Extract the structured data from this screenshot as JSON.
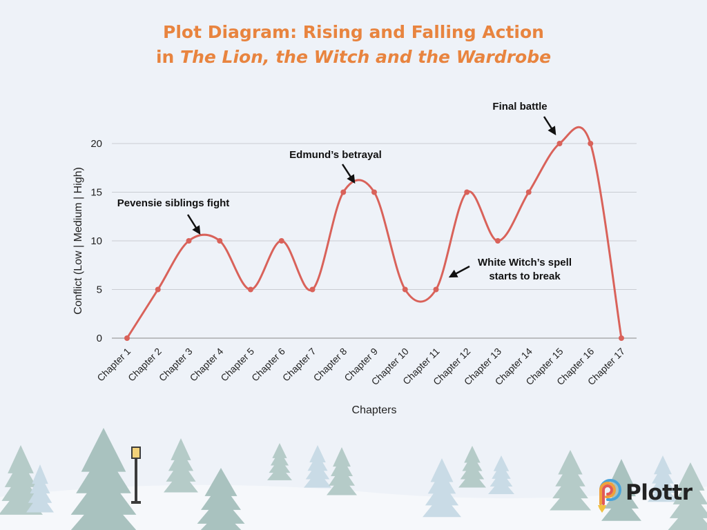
{
  "title": {
    "line1": "Plot Diagram: Rising and Falling Action",
    "line2_prefix": "in ",
    "line2_italic": "The Lion, the Witch and the Wardrobe"
  },
  "brand": {
    "name": "Plottr",
    "icon": "plottr-logo-icon"
  },
  "colors": {
    "title": "#e8843f",
    "line": "#d9625a",
    "grid": "#c9ccd2",
    "text": "#222222",
    "background": "#eef2f8",
    "trees": "#b8ccc9"
  },
  "chart_data": {
    "type": "line",
    "smooth": true,
    "xlabel": "Chapters",
    "ylabel": "Conflict (Low | Medium | High)",
    "ylim": [
      0,
      20
    ],
    "yticks": [
      0,
      5,
      10,
      15,
      20
    ],
    "grid": true,
    "categories": [
      "Chapter 1",
      "Chapter 2",
      "Chapter 3",
      "Chapter 4",
      "Chapter 5",
      "Chapter 6",
      "Chapter 7",
      "Chapter 8",
      "Chapter 9",
      "Chapter 10",
      "Chapter 11",
      "Chapter 12",
      "Chapter 13",
      "Chapter 14",
      "Chapter 15",
      "Chapter 16",
      "Chapter 17"
    ],
    "values": [
      0,
      5,
      10,
      10,
      5,
      10,
      5,
      15,
      15,
      5,
      5,
      15,
      10,
      15,
      20,
      20,
      0
    ],
    "annotations": [
      {
        "lines": [
          "Pevensie siblings fight"
        ],
        "category": "Chapter 3",
        "value": 10
      },
      {
        "lines": [
          "Edmund’s betrayal"
        ],
        "category": "Chapter 8",
        "value": 15
      },
      {
        "lines": [
          "Final battle"
        ],
        "category": "Chapter 15",
        "value": 20
      },
      {
        "lines": [
          "White Witch’s spell",
          "starts to break"
        ],
        "category": "Chapter 11",
        "value": 5
      }
    ]
  }
}
